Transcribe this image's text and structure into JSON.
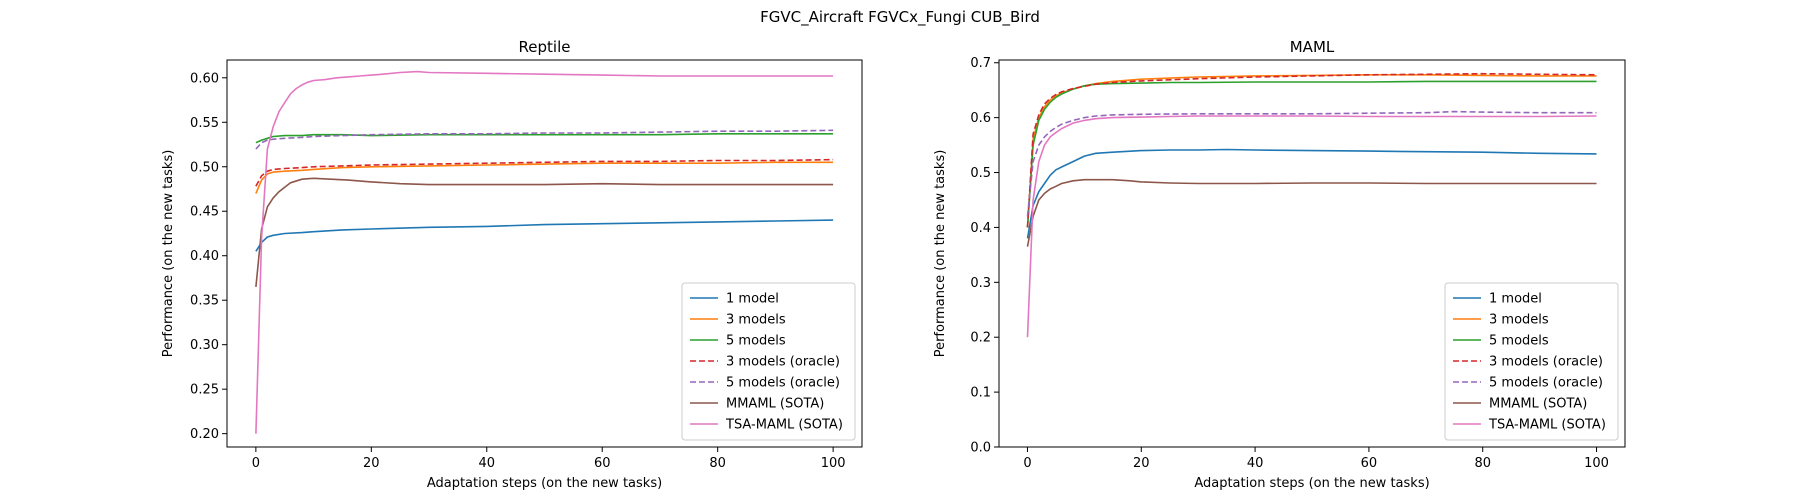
{
  "figure": {
    "suptitle": "FGVC_Aircraft FGVCx_Fungi CUB_Bird"
  },
  "colors": {
    "1 model": "#1f77b4",
    "3 models": "#ff7f0e",
    "5 models": "#2ca02c",
    "3 models (oracle)": "#d62728",
    "5 models (oracle)": "#9467bd",
    "MMAML (SOTA)": "#8c564b",
    "TSA-MAML (SOTA)": "#e377c2"
  },
  "chart_data": [
    {
      "type": "line",
      "title": "Reptile",
      "xlabel": "Adaptation steps (on the new tasks)",
      "ylabel": "Performance (on the new tasks)",
      "xlim": [
        -5,
        105
      ],
      "ylim": [
        0.185,
        0.62
      ],
      "xticks": [
        0,
        20,
        40,
        60,
        80,
        100
      ],
      "yticks": [
        0.2,
        0.25,
        0.3,
        0.35,
        0.4,
        0.45,
        0.5,
        0.55,
        0.6
      ],
      "ytick_labels": [
        "0.20",
        "0.25",
        "0.30",
        "0.35",
        "0.40",
        "0.45",
        "0.50",
        "0.55",
        "0.60"
      ],
      "legend_position": "lower-right",
      "series": [
        {
          "name": "1 model",
          "style": "solid",
          "x": [
            0,
            1,
            2,
            3,
            5,
            8,
            10,
            15,
            20,
            30,
            40,
            50,
            60,
            70,
            80,
            90,
            100
          ],
          "y": [
            0.405,
            0.415,
            0.421,
            0.423,
            0.425,
            0.426,
            0.427,
            0.429,
            0.43,
            0.432,
            0.433,
            0.435,
            0.436,
            0.437,
            0.438,
            0.439,
            0.44
          ]
        },
        {
          "name": "3 models",
          "style": "solid",
          "x": [
            0,
            1,
            2,
            3,
            5,
            8,
            10,
            15,
            20,
            30,
            40,
            50,
            60,
            70,
            80,
            90,
            100
          ],
          "y": [
            0.47,
            0.485,
            0.492,
            0.494,
            0.495,
            0.496,
            0.497,
            0.499,
            0.5,
            0.501,
            0.502,
            0.503,
            0.504,
            0.504,
            0.504,
            0.505,
            0.505
          ]
        },
        {
          "name": "5 models",
          "style": "solid",
          "x": [
            0,
            1,
            2,
            3,
            5,
            8,
            10,
            15,
            20,
            30,
            40,
            50,
            60,
            70,
            80,
            90,
            100
          ],
          "y": [
            0.527,
            0.53,
            0.532,
            0.534,
            0.535,
            0.535,
            0.536,
            0.536,
            0.535,
            0.536,
            0.536,
            0.536,
            0.536,
            0.536,
            0.537,
            0.537,
            0.537
          ]
        },
        {
          "name": "3 models (oracle)",
          "style": "dashed",
          "x": [
            0,
            1,
            2,
            3,
            5,
            8,
            10,
            15,
            20,
            30,
            40,
            50,
            60,
            70,
            80,
            90,
            100
          ],
          "y": [
            0.478,
            0.49,
            0.495,
            0.497,
            0.498,
            0.499,
            0.5,
            0.501,
            0.502,
            0.503,
            0.504,
            0.505,
            0.506,
            0.506,
            0.507,
            0.507,
            0.508
          ]
        },
        {
          "name": "5 models (oracle)",
          "style": "dashed",
          "x": [
            0,
            1,
            2,
            3,
            5,
            8,
            10,
            15,
            20,
            30,
            40,
            50,
            60,
            70,
            80,
            90,
            100
          ],
          "y": [
            0.52,
            0.527,
            0.53,
            0.531,
            0.532,
            0.533,
            0.534,
            0.535,
            0.536,
            0.537,
            0.537,
            0.538,
            0.538,
            0.539,
            0.54,
            0.54,
            0.541
          ]
        },
        {
          "name": "MMAML (SOTA)",
          "style": "solid",
          "x": [
            0,
            1,
            2,
            3,
            4,
            5,
            6,
            8,
            10,
            13,
            16,
            20,
            25,
            30,
            40,
            50,
            60,
            70,
            80,
            90,
            100
          ],
          "y": [
            0.365,
            0.43,
            0.455,
            0.465,
            0.472,
            0.477,
            0.482,
            0.486,
            0.487,
            0.486,
            0.485,
            0.483,
            0.481,
            0.48,
            0.48,
            0.48,
            0.481,
            0.48,
            0.48,
            0.48,
            0.48
          ]
        },
        {
          "name": "TSA-MAML (SOTA)",
          "style": "solid",
          "x": [
            0,
            1,
            2,
            3,
            4,
            5,
            6,
            7,
            8,
            9,
            10,
            12,
            14,
            16,
            18,
            20,
            22,
            25,
            28,
            30,
            40,
            50,
            60,
            70,
            80,
            90,
            100
          ],
          "y": [
            0.2,
            0.42,
            0.52,
            0.545,
            0.562,
            0.572,
            0.582,
            0.588,
            0.592,
            0.595,
            0.597,
            0.598,
            0.6,
            0.601,
            0.602,
            0.603,
            0.604,
            0.606,
            0.607,
            0.606,
            0.605,
            0.604,
            0.603,
            0.602,
            0.602,
            0.602,
            0.602
          ]
        }
      ]
    },
    {
      "type": "line",
      "title": "MAML",
      "xlabel": "Adaptation steps (on the new tasks)",
      "ylabel": "Performance (on the new tasks)",
      "xlim": [
        -5,
        105
      ],
      "ylim": [
        0.0,
        0.705
      ],
      "xticks": [
        0,
        20,
        40,
        60,
        80,
        100
      ],
      "yticks": [
        0.0,
        0.1,
        0.2,
        0.3,
        0.4,
        0.5,
        0.6,
        0.7
      ],
      "ytick_labels": [
        "0.0",
        "0.1",
        "0.2",
        "0.3",
        "0.4",
        "0.5",
        "0.6",
        "0.7"
      ],
      "legend_position": "lower-right",
      "series": [
        {
          "name": "1 model",
          "style": "solid",
          "x": [
            0,
            1,
            2,
            3,
            4,
            5,
            6,
            8,
            10,
            12,
            15,
            20,
            25,
            30,
            35,
            40,
            50,
            60,
            70,
            80,
            90,
            100
          ],
          "y": [
            0.38,
            0.44,
            0.465,
            0.48,
            0.495,
            0.505,
            0.51,
            0.52,
            0.53,
            0.535,
            0.537,
            0.54,
            0.541,
            0.541,
            0.542,
            0.541,
            0.54,
            0.539,
            0.538,
            0.537,
            0.535,
            0.534
          ]
        },
        {
          "name": "3 models",
          "style": "solid",
          "x": [
            0,
            1,
            2,
            3,
            4,
            5,
            6,
            8,
            10,
            12,
            15,
            20,
            25,
            30,
            40,
            50,
            60,
            70,
            80,
            90,
            100
          ],
          "y": [
            0.4,
            0.56,
            0.6,
            0.62,
            0.632,
            0.64,
            0.645,
            0.652,
            0.658,
            0.662,
            0.666,
            0.67,
            0.672,
            0.674,
            0.676,
            0.677,
            0.678,
            0.678,
            0.677,
            0.676,
            0.676
          ]
        },
        {
          "name": "5 models",
          "style": "solid",
          "x": [
            0,
            1,
            2,
            3,
            4,
            5,
            6,
            8,
            10,
            12,
            15,
            20,
            25,
            30,
            40,
            50,
            60,
            70,
            80,
            90,
            100
          ],
          "y": [
            0.4,
            0.55,
            0.595,
            0.615,
            0.628,
            0.637,
            0.643,
            0.652,
            0.658,
            0.661,
            0.662,
            0.663,
            0.664,
            0.664,
            0.665,
            0.665,
            0.665,
            0.666,
            0.666,
            0.666,
            0.666
          ]
        },
        {
          "name": "3 models (oracle)",
          "style": "dashed",
          "x": [
            0,
            1,
            2,
            3,
            4,
            5,
            6,
            8,
            10,
            12,
            15,
            20,
            25,
            30,
            40,
            50,
            60,
            70,
            80,
            90,
            100
          ],
          "y": [
            0.4,
            0.57,
            0.605,
            0.625,
            0.635,
            0.642,
            0.647,
            0.653,
            0.657,
            0.661,
            0.664,
            0.667,
            0.669,
            0.671,
            0.674,
            0.676,
            0.678,
            0.679,
            0.68,
            0.679,
            0.678
          ]
        },
        {
          "name": "5 models (oracle)",
          "style": "dashed",
          "x": [
            0,
            1,
            2,
            3,
            4,
            5,
            6,
            8,
            10,
            12,
            15,
            20,
            30,
            40,
            50,
            60,
            70,
            75,
            80,
            90,
            100
          ],
          "y": [
            0.42,
            0.52,
            0.55,
            0.565,
            0.575,
            0.582,
            0.588,
            0.595,
            0.6,
            0.603,
            0.605,
            0.606,
            0.607,
            0.607,
            0.607,
            0.608,
            0.609,
            0.611,
            0.61,
            0.609,
            0.609
          ]
        },
        {
          "name": "MMAML (SOTA)",
          "style": "solid",
          "x": [
            0,
            1,
            2,
            3,
            4,
            5,
            6,
            8,
            10,
            12,
            15,
            18,
            20,
            25,
            30,
            40,
            50,
            60,
            70,
            80,
            90,
            100
          ],
          "y": [
            0.365,
            0.42,
            0.45,
            0.462,
            0.47,
            0.475,
            0.48,
            0.485,
            0.487,
            0.487,
            0.487,
            0.485,
            0.483,
            0.481,
            0.48,
            0.48,
            0.481,
            0.481,
            0.48,
            0.48,
            0.48,
            0.48
          ]
        },
        {
          "name": "TSA-MAML (SOTA)",
          "style": "solid",
          "x": [
            0,
            1,
            2,
            3,
            4,
            5,
            6,
            8,
            10,
            12,
            15,
            20,
            25,
            30,
            40,
            50,
            60,
            70,
            80,
            90,
            100
          ],
          "y": [
            0.2,
            0.45,
            0.52,
            0.55,
            0.565,
            0.573,
            0.58,
            0.59,
            0.595,
            0.598,
            0.6,
            0.601,
            0.602,
            0.603,
            0.603,
            0.603,
            0.602,
            0.602,
            0.602,
            0.602,
            0.603
          ]
        }
      ]
    }
  ]
}
